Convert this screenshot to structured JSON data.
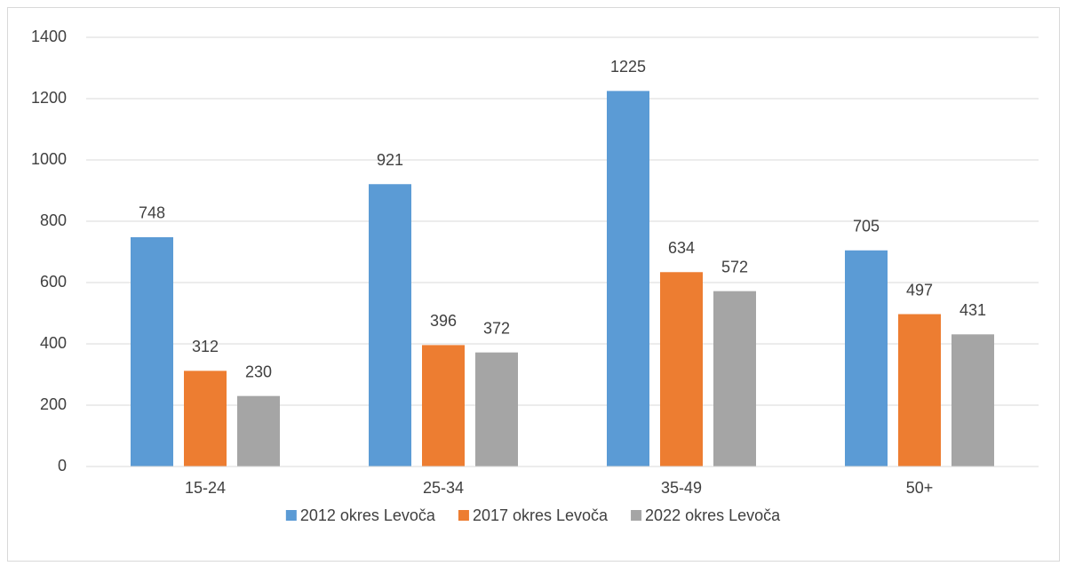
{
  "chart_data": {
    "type": "bar",
    "categories": [
      "15-24",
      "25-34",
      "35-49",
      "50+"
    ],
    "series": [
      {
        "name": "2012 okres Levoča",
        "color": "#5b9bd5",
        "values": [
          748,
          921,
          1225,
          705
        ]
      },
      {
        "name": "2017 okres Levoča",
        "color": "#ed7d31",
        "values": [
          312,
          396,
          634,
          497
        ]
      },
      {
        "name": "2022 okres Levoča",
        "color": "#a5a5a5",
        "values": [
          230,
          372,
          572,
          431
        ]
      }
    ],
    "ylim": [
      0,
      1400
    ],
    "yticks": [
      0,
      200,
      400,
      600,
      800,
      1000,
      1200,
      1400
    ],
    "grid": true,
    "data_labels": true,
    "legend": "bottom"
  }
}
